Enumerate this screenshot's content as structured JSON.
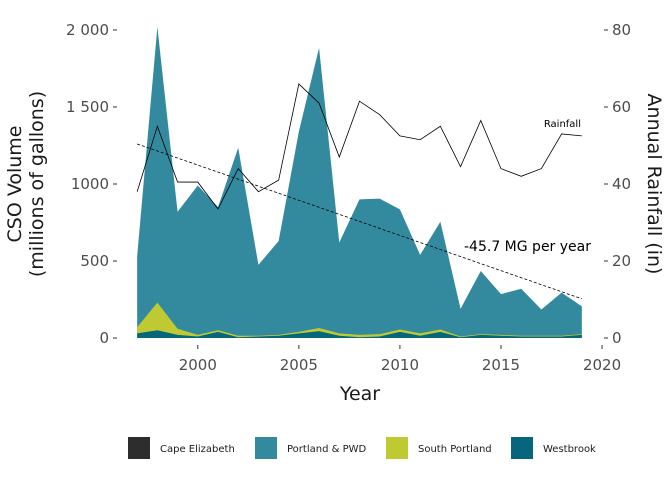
{
  "chart_data": {
    "type": "area",
    "x": [
      1997,
      1998,
      1999,
      2000,
      2001,
      2002,
      2003,
      2004,
      2005,
      2006,
      2007,
      2008,
      2009,
      2010,
      2011,
      2012,
      2013,
      2014,
      2015,
      2016,
      2017,
      2018,
      2019
    ],
    "stacked": true,
    "series": [
      {
        "name": "Cape Elizabeth",
        "color": "#2d2d2d",
        "values": [
          0,
          0,
          0,
          0,
          0,
          0,
          0,
          0,
          0,
          0,
          0,
          0,
          0,
          0,
          0,
          0,
          0,
          0,
          0,
          0,
          0,
          0,
          0
        ]
      },
      {
        "name": "Portland & PWD",
        "color": "#338a9f",
        "values": [
          460,
          1790,
          760,
          970,
          800,
          1220,
          460,
          610,
          1300,
          1820,
          590,
          880,
          880,
          780,
          510,
          700,
          180,
          410,
          265,
          305,
          170,
          280,
          180
        ]
      },
      {
        "name": "South Portland",
        "color": "#bfca33",
        "values": [
          40,
          180,
          40,
          10,
          10,
          10,
          5,
          5,
          10,
          20,
          15,
          15,
          15,
          15,
          15,
          15,
          5,
          5,
          5,
          5,
          5,
          5,
          5
        ]
      },
      {
        "name": "Westbrook",
        "color": "#06677c",
        "values": [
          30,
          50,
          20,
          10,
          40,
          5,
          10,
          15,
          30,
          45,
          15,
          5,
          10,
          40,
          15,
          40,
          5,
          20,
          15,
          10,
          10,
          10,
          20
        ]
      }
    ],
    "rainfall": {
      "name": "Rainfall",
      "axis": "right",
      "values": [
        38,
        55,
        40.5,
        40.5,
        33.5,
        44,
        38,
        41,
        66,
        61,
        47,
        61.5,
        58,
        52.5,
        51.5,
        55,
        44.5,
        56.5,
        44,
        42,
        44,
        53,
        52.5
      ]
    },
    "trend": {
      "label": "-45.7 MG per year",
      "slope": -45.7,
      "y_1997": 1260
    },
    "title": "",
    "xlabel": "Year",
    "ylabel": "CSO Volume\n(millions of gallons)",
    "ylabel_right": "Annual Rainfall (in)",
    "xlim": [
      1996.3,
      2019.8
    ],
    "ylim": [
      -100,
      2070
    ],
    "ylim_right": [
      0,
      80
    ],
    "x_ticks": [
      2000,
      2005,
      2010,
      2015,
      2020
    ],
    "x_tick_labels": [
      "2000",
      "2005",
      "2010",
      "2015",
      "2020"
    ],
    "y_ticks": [
      0,
      500,
      1000,
      1500,
      2000
    ],
    "y_tick_labels": [
      "0",
      "500",
      "1000",
      "1 500",
      "2 000"
    ],
    "y_right_ticks": [
      0,
      20,
      40,
      60,
      80
    ],
    "y_right_tick_labels": [
      "0",
      "20",
      "40",
      "60",
      "80"
    ],
    "grid": false,
    "legend_position": "bottom"
  },
  "labels": {
    "rain_annotation": "Rainfall",
    "trend_annotation": "-45.7 MG per year"
  }
}
